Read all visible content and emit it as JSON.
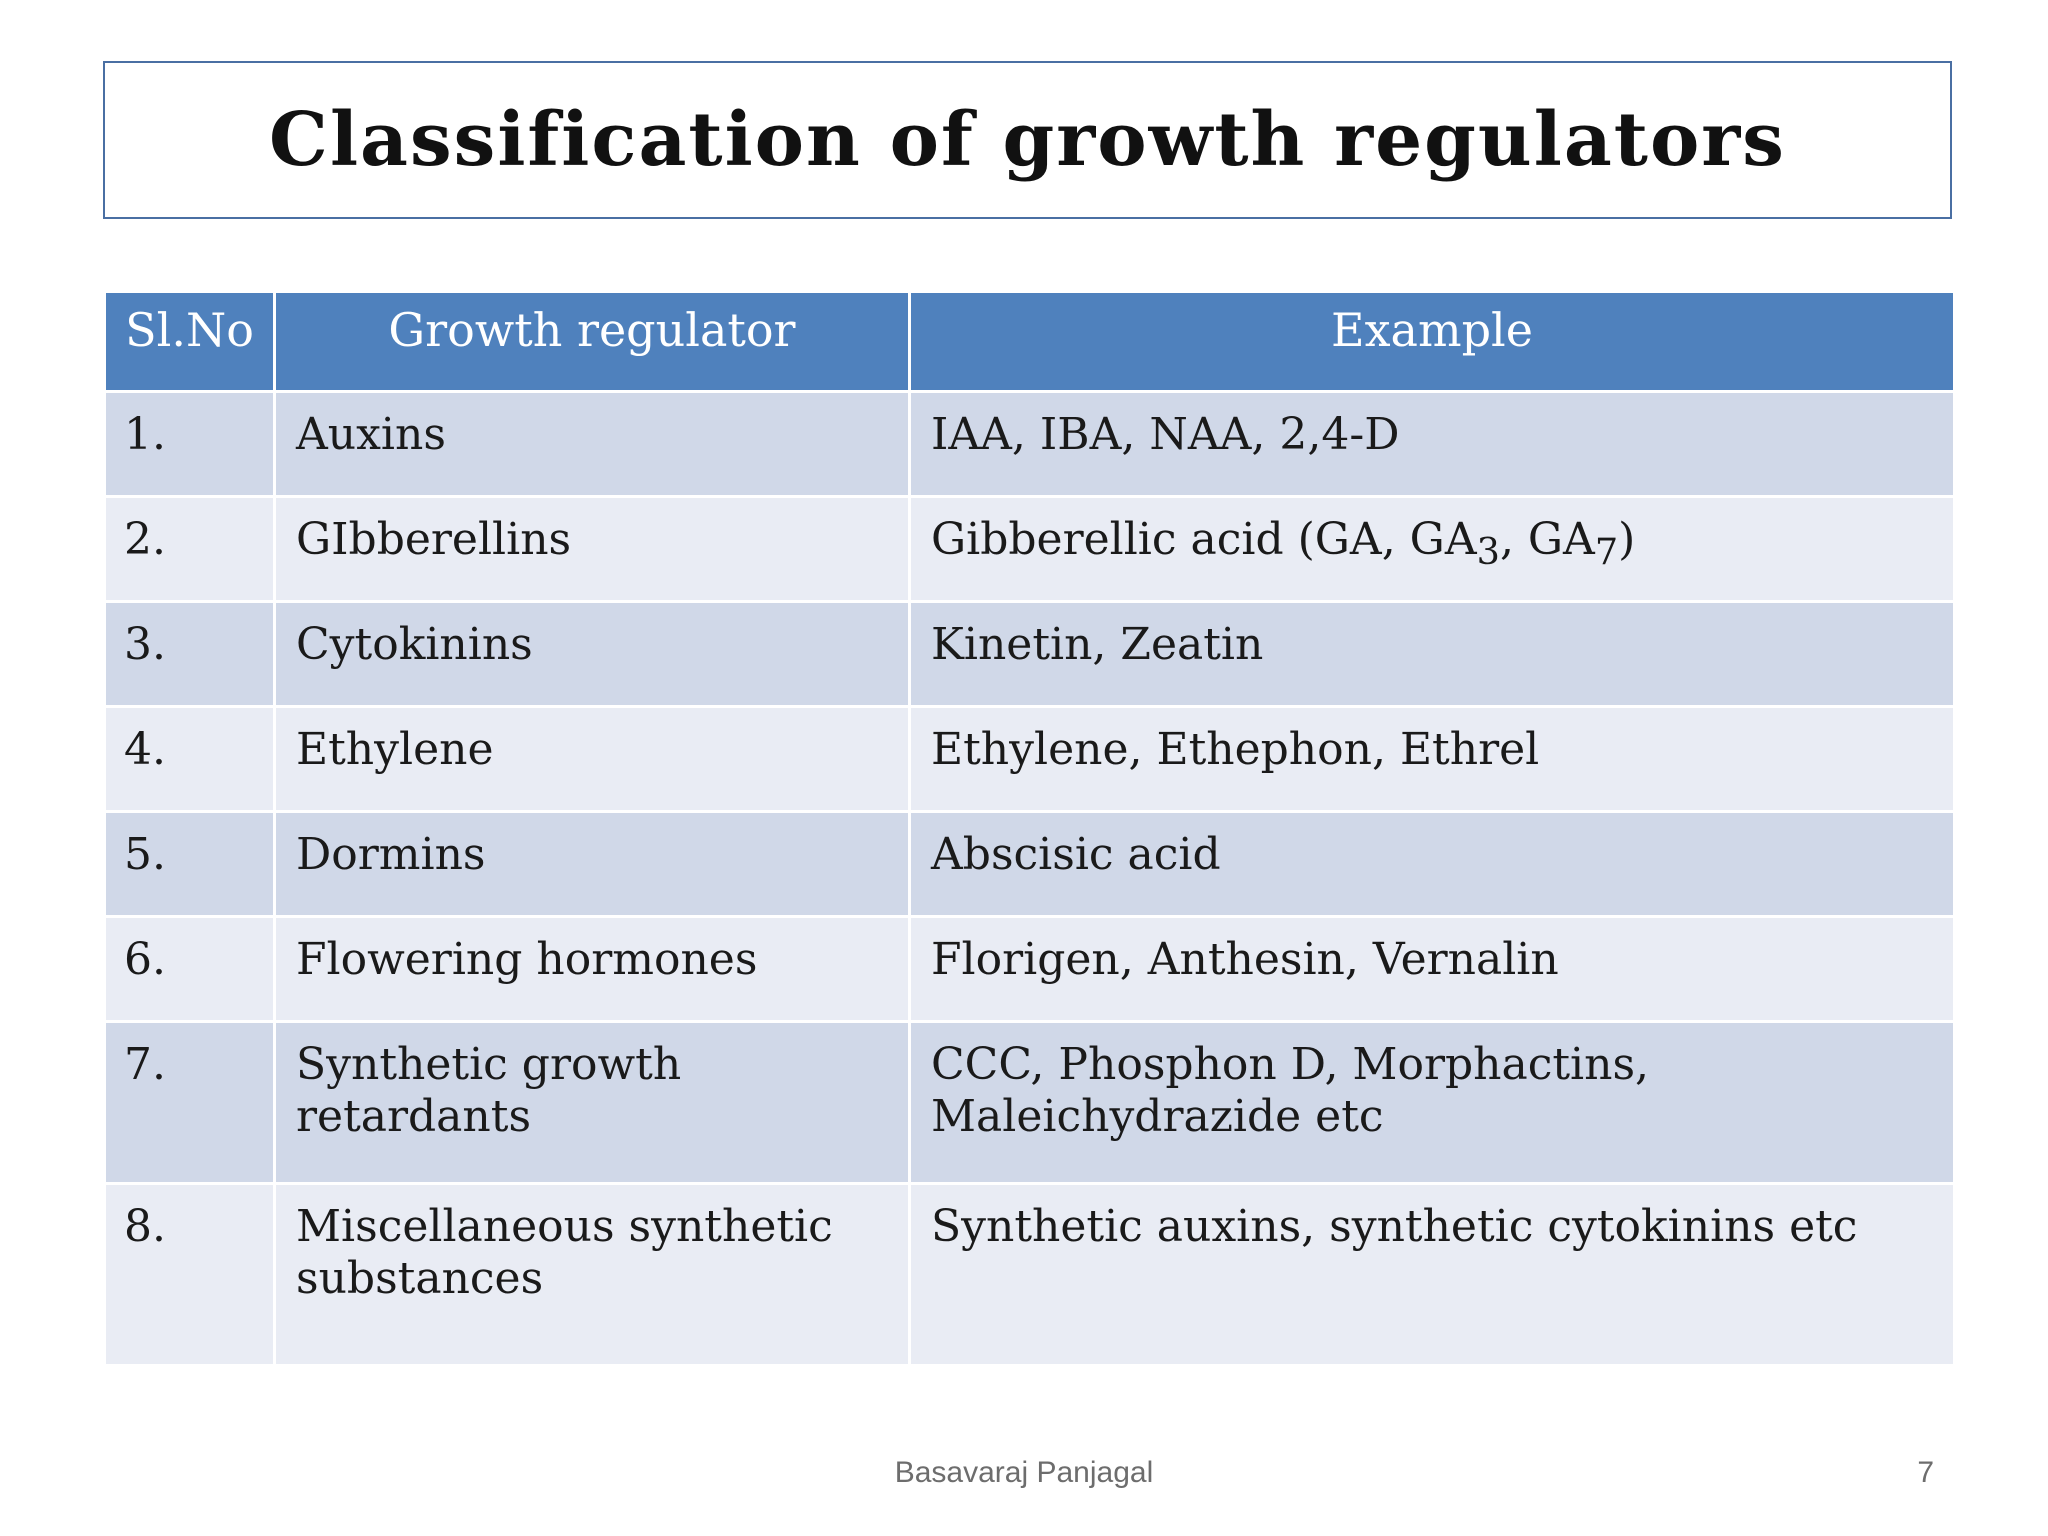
{
  "slide": {
    "title": "Classification of growth regulators",
    "author": "Basavaraj Panjagal",
    "page_number": "7"
  },
  "table": {
    "headers": [
      "Sl.No",
      "Growth regulator",
      "Example"
    ],
    "rows": [
      {
        "no": "1.",
        "regulator": "Auxins",
        "example": "IAA, IBA, NAA, 2,4-D"
      },
      {
        "no": "2.",
        "regulator": "GIbberellins",
        "example_parts": [
          "Gibberellic acid (GA, GA",
          "3",
          ", GA",
          "7",
          ")"
        ]
      },
      {
        "no": "3.",
        "regulator": "Cytokinins",
        "example": "Kinetin, Zeatin"
      },
      {
        "no": "4.",
        "regulator": "Ethylene",
        "example": "Ethylene, Ethephon, Ethrel"
      },
      {
        "no": "5.",
        "regulator": "Dormins",
        "example": "Abscisic acid"
      },
      {
        "no": "6.",
        "regulator": "Flowering hormones",
        "example": "Florigen, Anthesin, Vernalin"
      },
      {
        "no": "7.",
        "regulator": "Synthetic growth retardants",
        "example": "CCC, Phosphon D, Morphactins, Maleichydrazide etc"
      },
      {
        "no": "8.",
        "regulator": "Miscellaneous synthetic substances",
        "example": "Synthetic auxins, synthetic cytokinins etc"
      }
    ]
  },
  "colors": {
    "header_bg": "#4f81bd",
    "row_odd_bg": "#d0d8e8",
    "row_even_bg": "#e9ecf4",
    "title_border": "#4a6fa3"
  }
}
